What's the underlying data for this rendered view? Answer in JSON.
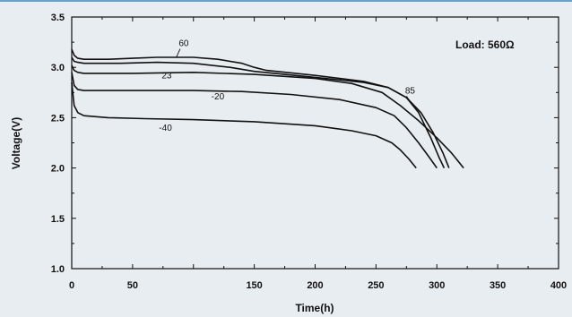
{
  "chart_data": {
    "type": "line",
    "title": "",
    "xlabel": "Time(h)",
    "ylabel": "Voltage(V)",
    "xlim": [
      0,
      400
    ],
    "ylim": [
      1.0,
      3.5
    ],
    "xticks": [
      0,
      50,
      100,
      150,
      200,
      250,
      300,
      350,
      400
    ],
    "xtick_labels": [
      "0",
      "50",
      "",
      "150",
      "200",
      "250",
      "300",
      "350",
      "400"
    ],
    "yticks": [
      1.0,
      1.5,
      2.0,
      2.5,
      3.0,
      3.5
    ],
    "ytick_labels": [
      "1.0",
      "1.5",
      "2.0",
      "2.5",
      "3.0",
      "3.5"
    ],
    "grid": false,
    "annotation": "Load: 560Ω",
    "line_color": "#111111",
    "background_color": "#e8edf2",
    "series": [
      {
        "name": "60",
        "points": [
          [
            0,
            3.18
          ],
          [
            2,
            3.12
          ],
          [
            5,
            3.09
          ],
          [
            10,
            3.08
          ],
          [
            30,
            3.08
          ],
          [
            50,
            3.09
          ],
          [
            70,
            3.1
          ],
          [
            100,
            3.1
          ],
          [
            120,
            3.08
          ],
          [
            140,
            3.04
          ],
          [
            150,
            3.0
          ],
          [
            160,
            2.97
          ],
          [
            200,
            2.92
          ],
          [
            240,
            2.86
          ],
          [
            260,
            2.8
          ],
          [
            275,
            2.7
          ],
          [
            285,
            2.55
          ],
          [
            295,
            2.3
          ],
          [
            302,
            2.1
          ],
          [
            306,
            2.0
          ]
        ]
      },
      {
        "name": "85",
        "points": [
          [
            0,
            3.1
          ],
          [
            2,
            3.06
          ],
          [
            5,
            3.05
          ],
          [
            10,
            3.04
          ],
          [
            40,
            3.04
          ],
          [
            70,
            3.05
          ],
          [
            100,
            3.04
          ],
          [
            130,
            3.0
          ],
          [
            150,
            2.96
          ],
          [
            200,
            2.9
          ],
          [
            240,
            2.85
          ],
          [
            260,
            2.8
          ],
          [
            275,
            2.7
          ],
          [
            287,
            2.55
          ],
          [
            297,
            2.35
          ],
          [
            305,
            2.15
          ],
          [
            310,
            2.0
          ]
        ]
      },
      {
        "name": "23",
        "points": [
          [
            0,
            3.02
          ],
          [
            2,
            2.97
          ],
          [
            5,
            2.95
          ],
          [
            10,
            2.94
          ],
          [
            50,
            2.94
          ],
          [
            100,
            2.95
          ],
          [
            150,
            2.93
          ],
          [
            200,
            2.89
          ],
          [
            230,
            2.84
          ],
          [
            255,
            2.75
          ],
          [
            270,
            2.62
          ],
          [
            285,
            2.47
          ],
          [
            300,
            2.3
          ],
          [
            312,
            2.15
          ],
          [
            322,
            2.0
          ]
        ]
      },
      {
        "name": "-20",
        "points": [
          [
            0,
            2.95
          ],
          [
            2,
            2.82
          ],
          [
            5,
            2.78
          ],
          [
            10,
            2.77
          ],
          [
            50,
            2.77
          ],
          [
            100,
            2.77
          ],
          [
            140,
            2.76
          ],
          [
            180,
            2.73
          ],
          [
            220,
            2.68
          ],
          [
            250,
            2.6
          ],
          [
            265,
            2.52
          ],
          [
            275,
            2.4
          ],
          [
            285,
            2.25
          ],
          [
            293,
            2.12
          ],
          [
            300,
            2.0
          ]
        ]
      },
      {
        "name": "-40",
        "points": [
          [
            0,
            2.85
          ],
          [
            2,
            2.62
          ],
          [
            5,
            2.55
          ],
          [
            10,
            2.52
          ],
          [
            30,
            2.5
          ],
          [
            60,
            2.49
          ],
          [
            100,
            2.48
          ],
          [
            150,
            2.46
          ],
          [
            200,
            2.42
          ],
          [
            230,
            2.37
          ],
          [
            250,
            2.32
          ],
          [
            263,
            2.25
          ],
          [
            270,
            2.18
          ],
          [
            277,
            2.09
          ],
          [
            283,
            2.0
          ]
        ]
      }
    ],
    "series_label_anchors": [
      {
        "name": "60",
        "label_at": [
          92,
          3.21
        ],
        "leader_to": [
          86,
          3.1
        ]
      },
      {
        "name": "85",
        "label_at": [
          278,
          2.74
        ],
        "leader_to": [
          281,
          2.61
        ]
      },
      {
        "name": "23",
        "label_at": [
          78,
          2.89
        ],
        "leader_to": null
      },
      {
        "name": "-20",
        "label_at": [
          120,
          2.68
        ],
        "leader_to": null
      },
      {
        "name": "-40",
        "label_at": [
          77,
          2.37
        ],
        "leader_to": null
      }
    ]
  }
}
